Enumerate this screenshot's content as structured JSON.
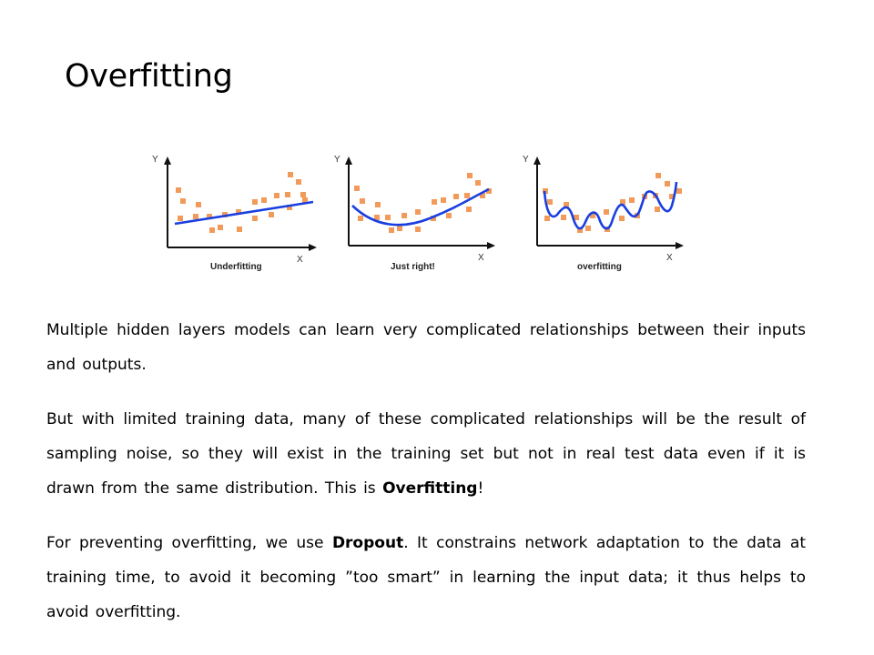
{
  "slide": {
    "title": "Overfitting"
  },
  "figure": {
    "axis_y_label": "Y",
    "axis_x_label": "X",
    "panels": [
      {
        "caption": "Underfitting",
        "fit": "linear"
      },
      {
        "caption": "Just right!",
        "fit": "quadratic"
      },
      {
        "caption": "overfitting",
        "fit": "wiggly"
      }
    ],
    "colors": {
      "points": "#f29a5a",
      "curve": "#1a3fe0",
      "axes": "#111111"
    }
  },
  "paragraphs": [
    {
      "parts": [
        {
          "text": "Multiple hidden layers models can learn very complicated relationships between their inputs and outputs."
        }
      ]
    },
    {
      "parts": [
        {
          "text": "But with limited training data, many of these complicated relationships will be the result of sampling noise, so they will exist in the training set but not in real test data even if it is drawn from the same distribution. This is "
        },
        {
          "text": "Overfitting",
          "bold": true
        },
        {
          "text": "!"
        }
      ]
    },
    {
      "parts": [
        {
          "text": "For preventing overfitting, we use "
        },
        {
          "text": "Dropout",
          "bold": true
        },
        {
          "text": ". It constrains network adaptation to the data at training time, to avoid it becoming ”too smart” in learning the input data; it thus helps to avoid overfitting."
        }
      ]
    }
  ]
}
